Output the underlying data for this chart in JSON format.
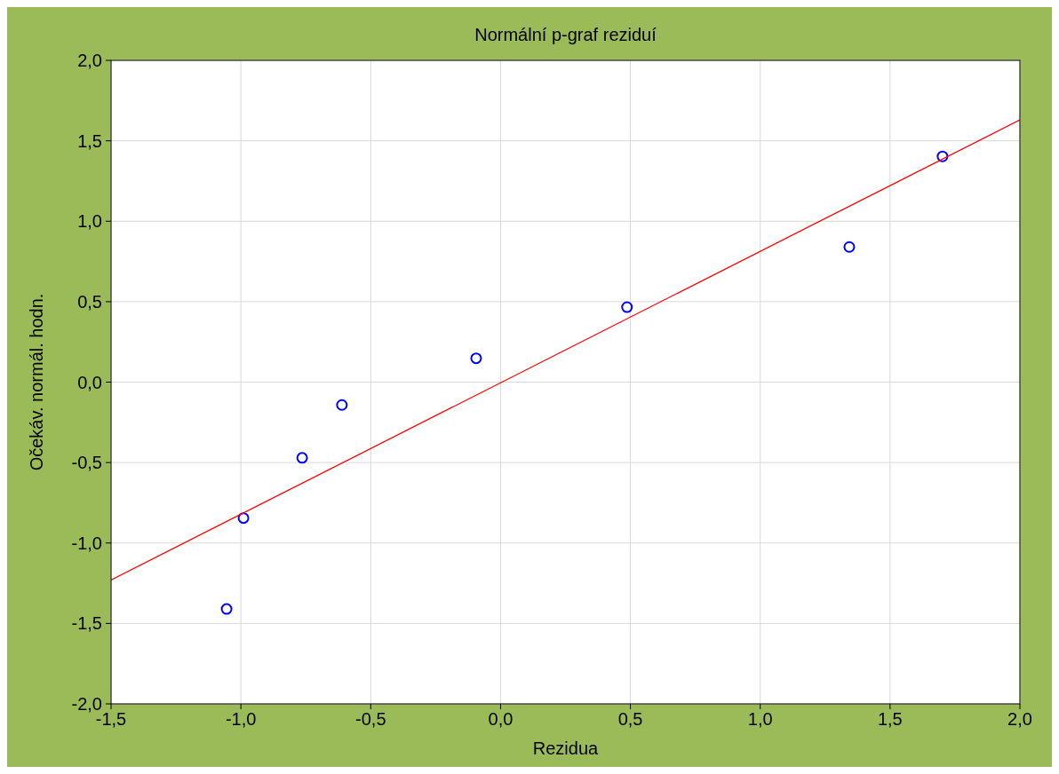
{
  "chart_data": {
    "type": "scatter",
    "title": "Normální p-graf reziduí",
    "xlabel": "Rezidua",
    "ylabel": "Očekáv. normál. hodn.",
    "xlim": [
      -1.5,
      2.0
    ],
    "ylim": [
      -2.0,
      2.0
    ],
    "xticks": [
      {
        "value": -1.5,
        "label": "-1,5"
      },
      {
        "value": -1.0,
        "label": "-1,0"
      },
      {
        "value": -0.5,
        "label": "-0,5"
      },
      {
        "value": 0,
        "label": "0,0"
      },
      {
        "value": 0.5,
        "label": "0,5"
      },
      {
        "value": 1.0,
        "label": "1,0"
      },
      {
        "value": 1.5,
        "label": "1,5"
      },
      {
        "value": 2.0,
        "label": "2,0"
      }
    ],
    "yticks": [
      {
        "value": -2.0,
        "label": "-2,0"
      },
      {
        "value": -1.5,
        "label": "-1,5"
      },
      {
        "value": -1.0,
        "label": "-1,0"
      },
      {
        "value": -0.5,
        "label": "-0,5"
      },
      {
        "value": 0,
        "label": "0,0"
      },
      {
        "value": 0.5,
        "label": "0,5"
      },
      {
        "value": 1.0,
        "label": "1,0"
      },
      {
        "value": 1.5,
        "label": "1,5"
      },
      {
        "value": 2.0,
        "label": "2,0"
      }
    ],
    "grid": true,
    "series": [
      {
        "color": "#0000ff",
        "marker": "circle",
        "x": [
          -1.055,
          -0.99,
          -0.764,
          -0.611,
          -0.094,
          0.487,
          1.343,
          1.702
        ],
        "values": [
          -1.41,
          -0.845,
          -0.471,
          -0.142,
          0.148,
          0.466,
          0.84,
          1.403
        ]
      },
      {
        "type": "line",
        "color": "#ff0000",
        "marker": "none",
        "line_style": "solid",
        "x": [
          -1.5,
          2.0
        ],
        "values": [
          -1.23,
          1.63
        ]
      }
    ]
  }
}
